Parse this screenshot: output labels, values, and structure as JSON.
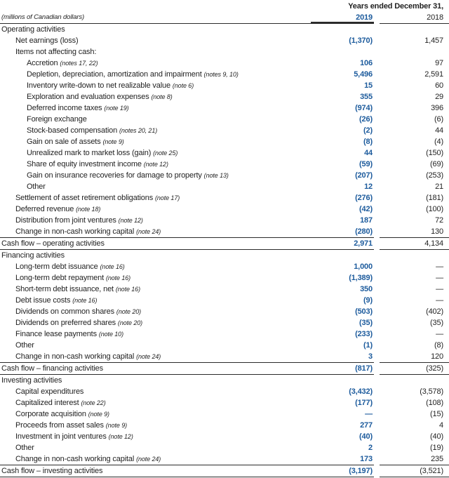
{
  "meta": {
    "period_label": "Years ended December 31,",
    "units_label": "(millions of Canadian dollars)",
    "col_2019": "2019",
    "col_2018": "2018"
  },
  "colors": {
    "accent_blue": "#1b5a9c",
    "text": "#1f1f1f",
    "rule": "#2b2b2b"
  },
  "rows": [
    {
      "t": "sec",
      "l": "Operating activities"
    },
    {
      "t": "item",
      "i": 1,
      "l": "Net earnings (loss)",
      "a": "(1,370)",
      "b": "1,457"
    },
    {
      "t": "plain",
      "i": 1,
      "l": "Items not affecting cash:"
    },
    {
      "t": "item",
      "i": 2,
      "l": "Accretion",
      "n": "(notes 17, 22)",
      "a": "106",
      "b": "97"
    },
    {
      "t": "item",
      "i": 2,
      "l": "Depletion, depreciation, amortization and impairment",
      "n": "(notes 9, 10)",
      "a": "5,496",
      "b": "2,591"
    },
    {
      "t": "item",
      "i": 2,
      "l": "Inventory write-down to net realizable value",
      "n": "(note 6)",
      "a": "15",
      "b": "60"
    },
    {
      "t": "item",
      "i": 2,
      "l": "Exploration and evaluation expenses",
      "n": "(note 8)",
      "a": "355",
      "b": "29"
    },
    {
      "t": "item",
      "i": 2,
      "l": "Deferred income taxes",
      "n": "(note 19)",
      "a": "(974)",
      "b": "396"
    },
    {
      "t": "item",
      "i": 2,
      "l": "Foreign exchange",
      "a": "(26)",
      "b": "(6)"
    },
    {
      "t": "item",
      "i": 2,
      "l": "Stock-based compensation",
      "n": "(notes 20, 21)",
      "a": "(2)",
      "b": "44"
    },
    {
      "t": "item",
      "i": 2,
      "l": "Gain on sale of assets",
      "n": "(note 9)",
      "a": "(8)",
      "b": "(4)"
    },
    {
      "t": "item",
      "i": 2,
      "l": "Unrealized mark to market loss (gain)",
      "n": "(note 25)",
      "a": "44",
      "b": "(150)"
    },
    {
      "t": "item",
      "i": 2,
      "l": "Share of equity investment income",
      "n": "(note 12)",
      "a": "(59)",
      "b": "(69)"
    },
    {
      "t": "item",
      "i": 2,
      "l": "Gain on insurance recoveries for damage to property",
      "n": "(note 13)",
      "a": "(207)",
      "b": "(253)"
    },
    {
      "t": "item",
      "i": 2,
      "l": "Other",
      "a": "12",
      "b": "21"
    },
    {
      "t": "item",
      "i": 1,
      "l": "Settlement of asset retirement obligations",
      "n": "(note 17)",
      "a": "(276)",
      "b": "(181)"
    },
    {
      "t": "item",
      "i": 1,
      "l": "Deferred revenue",
      "n": "(note 18)",
      "a": "(42)",
      "b": "(100)"
    },
    {
      "t": "item",
      "i": 1,
      "l": "Distribution from joint ventures",
      "n": "(note 12)",
      "a": "187",
      "b": "72"
    },
    {
      "t": "item",
      "i": 1,
      "l": "Change in non-cash working capital",
      "n": "(note 24)",
      "a": "(280)",
      "b": "130"
    },
    {
      "t": "total",
      "l": "Cash flow – operating activities",
      "a": "2,971",
      "b": "4,134"
    },
    {
      "t": "sec",
      "l": "Financing activities"
    },
    {
      "t": "item",
      "i": 1,
      "l": "Long-term debt issuance",
      "n": "(note 16)",
      "a": "1,000",
      "b": "—"
    },
    {
      "t": "item",
      "i": 1,
      "l": "Long-term debt repayment",
      "n": "(note 16)",
      "a": "(1,389)",
      "b": "—"
    },
    {
      "t": "item",
      "i": 1,
      "l": "Short-term debt issuance, net",
      "n": "(note 16)",
      "a": "350",
      "b": "—"
    },
    {
      "t": "item",
      "i": 1,
      "l": "Debt issue costs",
      "n": "(note 16)",
      "a": "(9)",
      "b": "—"
    },
    {
      "t": "item",
      "i": 1,
      "l": "Dividends on common shares",
      "n": "(note 20)",
      "a": "(503)",
      "b": "(402)"
    },
    {
      "t": "item",
      "i": 1,
      "l": "Dividends on preferred shares",
      "n": "(note 20)",
      "a": "(35)",
      "b": "(35)"
    },
    {
      "t": "item",
      "i": 1,
      "l": "Finance lease payments",
      "n": "(note 10)",
      "a": "(233)",
      "b": "—"
    },
    {
      "t": "item",
      "i": 1,
      "l": "Other",
      "a": "(1)",
      "b": "(8)"
    },
    {
      "t": "item",
      "i": 1,
      "l": "Change in non-cash working capital",
      "n": "(note 24)",
      "a": "3",
      "b": "120"
    },
    {
      "t": "total",
      "l": "Cash flow – financing activities",
      "a": "(817)",
      "b": "(325)"
    },
    {
      "t": "sec",
      "l": "Investing activities"
    },
    {
      "t": "item",
      "i": 1,
      "l": "Capital expenditures",
      "a": "(3,432)",
      "b": "(3,578)"
    },
    {
      "t": "item",
      "i": 1,
      "l": "Capitalized interest",
      "n": "(note 22)",
      "a": "(177)",
      "b": "(108)"
    },
    {
      "t": "item",
      "i": 1,
      "l": "Corporate acquisition",
      "n": "(note 9)",
      "a": "—",
      "b": "(15)"
    },
    {
      "t": "item",
      "i": 1,
      "l": "Proceeds from asset sales",
      "n": "(note 9)",
      "a": "277",
      "b": "4"
    },
    {
      "t": "item",
      "i": 1,
      "l": "Investment in joint ventures",
      "n": "(note 12)",
      "a": "(40)",
      "b": "(40)"
    },
    {
      "t": "item",
      "i": 1,
      "l": "Other",
      "a": "2",
      "b": "(19)"
    },
    {
      "t": "item",
      "i": 1,
      "l": "Change in non-cash working capital",
      "n": "(note 24)",
      "a": "173",
      "b": "235"
    },
    {
      "t": "total",
      "l": "Cash flow – investing activities",
      "a": "(3,197)",
      "b": "(3,521)"
    }
  ]
}
